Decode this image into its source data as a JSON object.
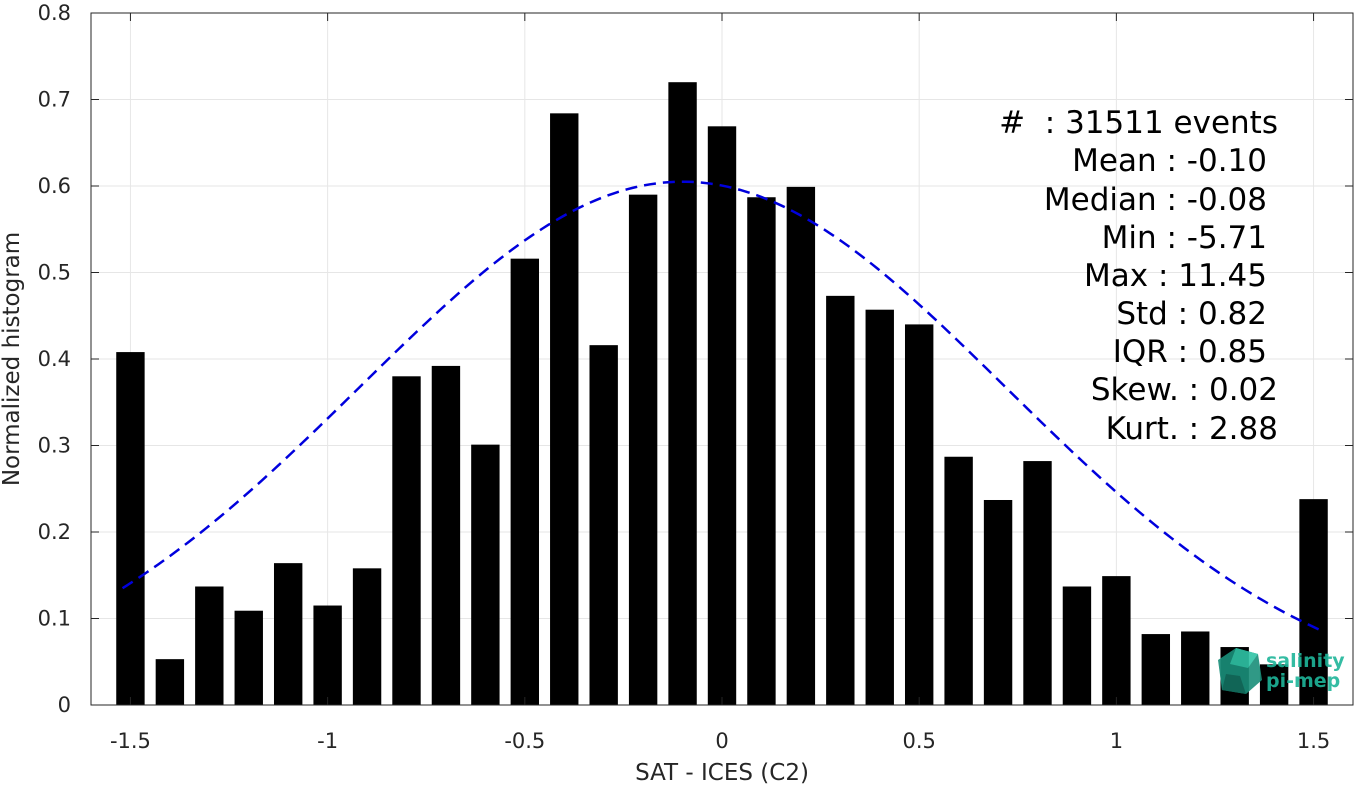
{
  "chart_data": {
    "type": "bar",
    "xlabel": "SAT - ICES (C2)",
    "ylabel": "Normalized histogram",
    "xlim": [
      -1.6,
      1.6
    ],
    "ylim": [
      0,
      0.8
    ],
    "xticks": [
      -1.5,
      -1,
      -0.5,
      0,
      0.5,
      1,
      1.5
    ],
    "xtick_labels": [
      "-1.5",
      "-1",
      "-0.5",
      "0",
      "0.5",
      "1",
      "1.5"
    ],
    "yticks": [
      0,
      0.1,
      0.2,
      0.3,
      0.4,
      0.5,
      0.6,
      0.7,
      0.8
    ],
    "ytick_labels": [
      "0",
      "0.1",
      "0.2",
      "0.3",
      "0.4",
      "0.5",
      "0.6",
      "0.7",
      "0.8"
    ],
    "grid": true,
    "bar_color": "#000000",
    "bars": {
      "x": [
        -1.5,
        -1.4,
        -1.3,
        -1.2,
        -1.1,
        -1.0,
        -0.9,
        -0.8,
        -0.7,
        -0.6,
        -0.5,
        -0.4,
        -0.3,
        -0.2,
        -0.1,
        0.0,
        0.1,
        0.2,
        0.3,
        0.4,
        0.5,
        0.6,
        0.7,
        0.8,
        0.9,
        1.0,
        1.1,
        1.2,
        1.3,
        1.4,
        1.5
      ],
      "values": [
        0.408,
        0.053,
        0.137,
        0.109,
        0.164,
        0.115,
        0.158,
        0.38,
        0.392,
        0.301,
        0.516,
        0.684,
        0.416,
        0.59,
        0.72,
        0.669,
        0.587,
        0.599,
        0.473,
        0.457,
        0.44,
        0.287,
        0.237,
        0.282,
        0.137,
        0.149,
        0.082,
        0.085,
        0.067,
        0.047,
        0.238
      ]
    },
    "fit": {
      "style": "dashed",
      "color": "#0000dd",
      "mean": -0.1,
      "std": 0.82,
      "peak": 0.605,
      "x_range": [
        -1.52,
        1.52
      ]
    },
    "stats": [
      {
        "label": "#  : 31511 events"
      },
      {
        "label": "Mean : -0.10"
      },
      {
        "label": "Median : -0.08"
      },
      {
        "label": "Min : -5.71"
      },
      {
        "label": "Max : 11.45"
      },
      {
        "label": "Std : 0.82"
      },
      {
        "label": "IQR : 0.85"
      },
      {
        "label": "Skew. : 0.02"
      },
      {
        "label": "Kurt. : 2.88"
      }
    ]
  },
  "logo": {
    "line1": "salinity",
    "line2": "pi-mep",
    "color": "#1fb59a"
  }
}
